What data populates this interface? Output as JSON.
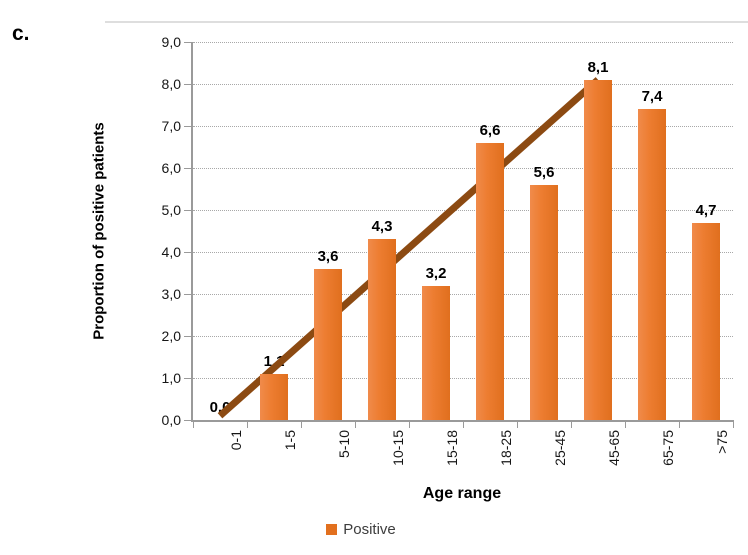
{
  "panel_label": "c.",
  "chart_data": {
    "type": "bar",
    "title": "",
    "categories": [
      "0-1",
      "1-5",
      "5-10",
      "10-15",
      "15-18",
      "18-25",
      "25-45",
      "45-65",
      "65-75",
      ">75"
    ],
    "series": [
      {
        "name": "Positive",
        "values": [
          0.0,
          1.1,
          3.6,
          4.3,
          3.2,
          6.6,
          5.6,
          8.1,
          7.4,
          4.7
        ]
      }
    ],
    "data_labels": [
      "0,0",
      "1,1",
      "3,6",
      "4,3",
      "3,2",
      "6,6",
      "5,6",
      "8,1",
      "7,4",
      "4,7"
    ],
    "xlabel": "Age range",
    "ylabel": "Proportion of positive patients",
    "ylim": [
      0,
      9
    ],
    "ytick_step": 1,
    "ytick_labels": [
      "0,0",
      "1,0",
      "2,0",
      "3,0",
      "4,0",
      "5,0",
      "6,0",
      "7,0",
      "8,0",
      "9,0"
    ],
    "grid": "horizontal-dotted",
    "legend": {
      "position": "bottom",
      "entries": [
        {
          "label": "Positive",
          "color": "#ED7D31"
        }
      ]
    },
    "trendline": {
      "color": "#8C4A12",
      "width": 7,
      "start": {
        "category_index": 0,
        "value": 0.1
      },
      "end": {
        "category_index": 7,
        "value": 8.1
      }
    }
  },
  "colors": {
    "bar": "#ED7D31",
    "bar_gradient_light": "#F08B4B",
    "bar_gradient_dark": "#E06F1E",
    "trendline": "#8C4A12",
    "gridline": "#A8A8A8",
    "axis": "#9A9A9A",
    "frame_line": "#DEDEDE",
    "legend_text": "#3D3D3D",
    "text": "#000000"
  }
}
